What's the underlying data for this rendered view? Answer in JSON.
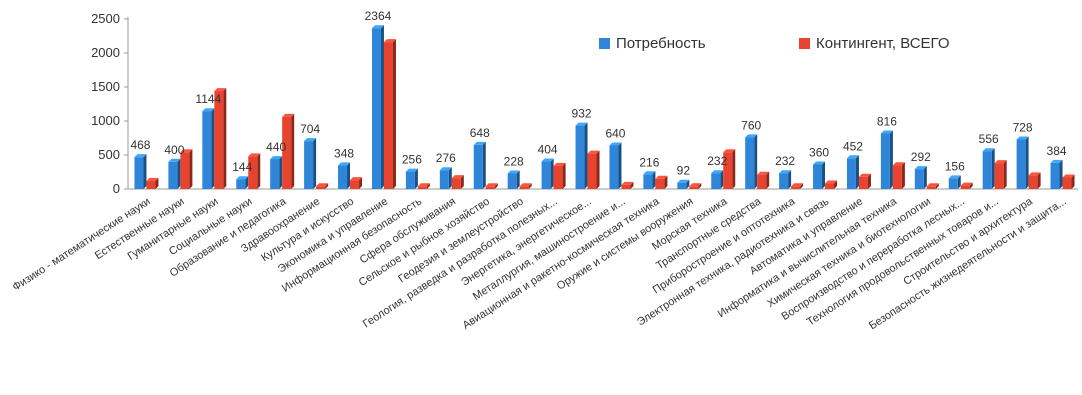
{
  "chart_data": {
    "type": "bar",
    "title": "",
    "xlabel": "",
    "ylabel": "",
    "ylim": [
      0,
      2500
    ],
    "yticks": [
      0,
      500,
      1000,
      1500,
      2000,
      2500
    ],
    "grid": false,
    "legend_position": "top-right",
    "categories": [
      "Физико - математические науки",
      "Естественные науки",
      "Гуманитарные науки",
      "Социальные науки",
      "Образование и педагогика",
      "Здравоохранение",
      "Культура и искусство",
      "Экономика и управление",
      "Информационная безопасность",
      "Сфера обслуживания",
      "Сельское и рыбное хозяйство",
      "Геодезия и землеустройство",
      "Геология, разведка и разработка полезных...",
      "Энергетика, энергетическое...",
      "Металлургия, машиностроение и...",
      "Авиационная и ракетно-космическая техника",
      "Оружие и системы вооружения",
      "Морская техника",
      "Транспортные средства",
      "Приборостроение и оптотехника",
      "Электронная техника, радиотехника и связь",
      "Автоматика и управление",
      "Информатика и вычислительная техника",
      "Химическая техника и биотехнологии",
      "Воспроизводство и переработка лесных...",
      "Технология продовольственных товаров и...",
      "Строительство и архитектура",
      "Безопасность жизнедеятельности и защита..."
    ],
    "series": [
      {
        "name": "Потребность",
        "color": "#2f86d8",
        "values": [
          468,
          400,
          1144,
          144,
          440,
          704,
          348,
          2364,
          256,
          276,
          648,
          228,
          404,
          932,
          640,
          216,
          92,
          232,
          760,
          232,
          360,
          452,
          816,
          292,
          156,
          556,
          728,
          384
        ],
        "labels": [
          "468",
          "400",
          "1144",
          "144",
          "440",
          "704",
          "348",
          "2364",
          "256",
          "276",
          "648",
          "228",
          "404",
          "932",
          "640",
          "216",
          "92",
          "232",
          "760",
          "232",
          "360",
          "452",
          "816",
          "292",
          "156",
          "556",
          "728",
          "384"
        ]
      },
      {
        "name": "Контингент, ВСЕГО",
        "color": "#e8432f",
        "values": [
          120,
          540,
          1440,
          480,
          1060,
          40,
          130,
          2160,
          40,
          160,
          40,
          40,
          340,
          520,
          60,
          150,
          40,
          540,
          210,
          40,
          80,
          180,
          350,
          40,
          50,
          380,
          200,
          170
        ]
      }
    ]
  }
}
